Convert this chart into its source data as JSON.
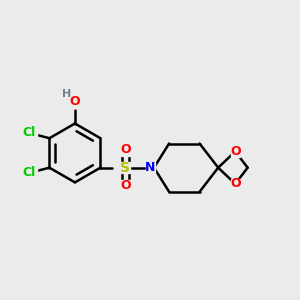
{
  "background_color": "#ebebeb",
  "figsize": [
    3.0,
    3.0
  ],
  "dpi": 100,
  "bond_color": "#000000",
  "bond_width": 1.8,
  "label_colors": {
    "Cl": "#00cc00",
    "O": "#ff0000",
    "S": "#bbbb00",
    "N": "#0000ff",
    "H": "#708090"
  }
}
